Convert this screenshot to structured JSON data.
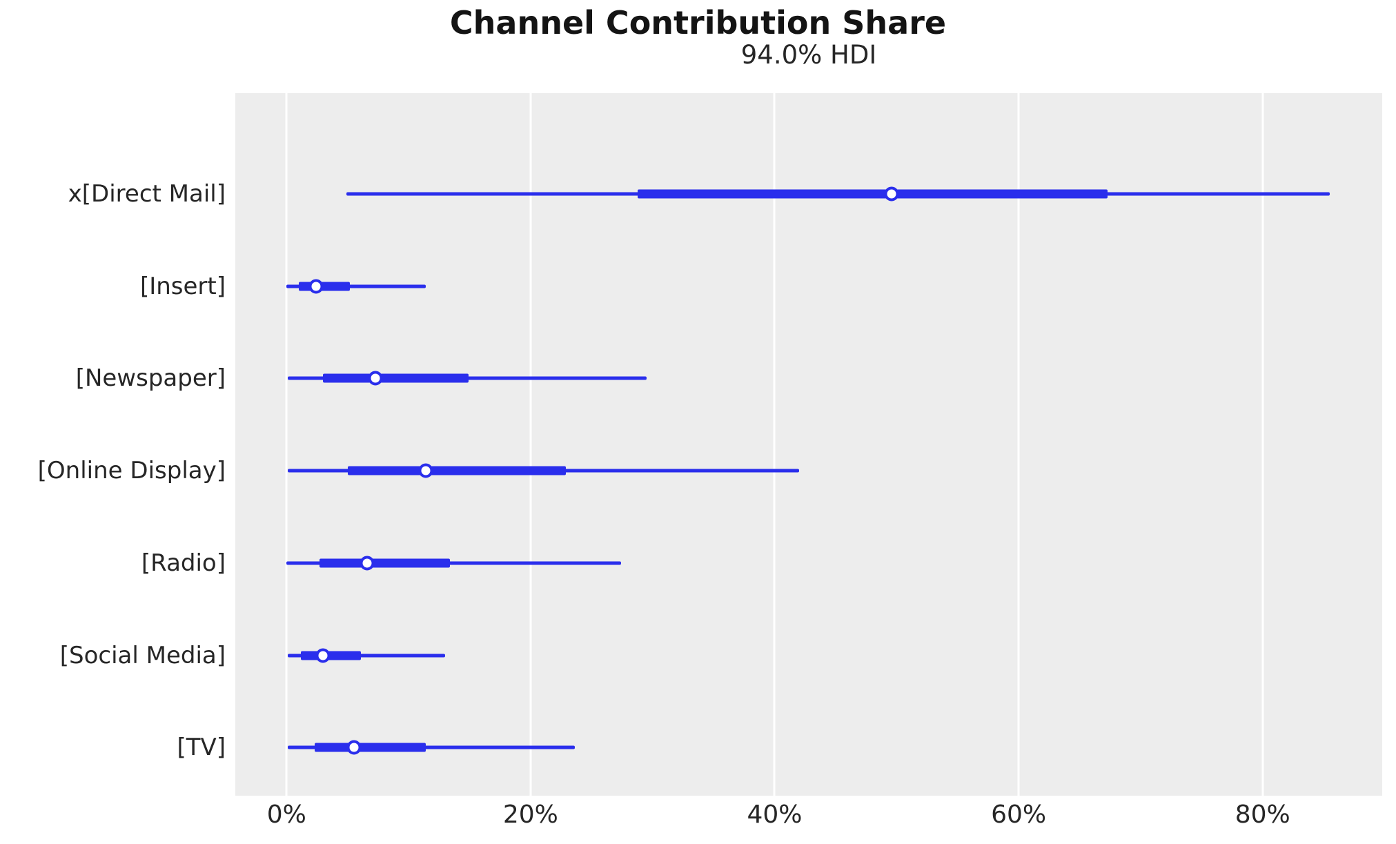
{
  "title": "Channel Contribution Share",
  "subtitle": "94.0% HDI",
  "chart_data": {
    "type": "forest",
    "title": "Channel Contribution Share",
    "subtitle": "94.0% HDI",
    "hdi_probability": "94.0%",
    "categories": [
      "x[Direct Mail]",
      "[Insert]",
      "[Newspaper]",
      "[Online Display]",
      "[Radio]",
      "[Social Media]",
      "[TV]"
    ],
    "series": [
      {
        "name": "x[Direct Mail]",
        "hdi_low": 4.9,
        "hdi_high": 85.5,
        "quartile_low": 28.8,
        "quartile_high": 67.3,
        "median": 49.6
      },
      {
        "name": "[Insert]",
        "hdi_low": 0.0,
        "hdi_high": 11.4,
        "quartile_low": 1.0,
        "quartile_high": 5.2,
        "median": 2.4
      },
      {
        "name": "[Newspaper]",
        "hdi_low": 0.1,
        "hdi_high": 29.5,
        "quartile_low": 3.0,
        "quartile_high": 14.9,
        "median": 7.3
      },
      {
        "name": "[Online Display]",
        "hdi_low": 0.1,
        "hdi_high": 42.0,
        "quartile_low": 5.0,
        "quartile_high": 22.9,
        "median": 11.4
      },
      {
        "name": "[Radio]",
        "hdi_low": 0.0,
        "hdi_high": 27.4,
        "quartile_low": 2.7,
        "quartile_high": 13.4,
        "median": 6.6
      },
      {
        "name": "[Social Media]",
        "hdi_low": 0.1,
        "hdi_high": 13.0,
        "quartile_low": 1.2,
        "quartile_high": 6.1,
        "median": 3.0
      },
      {
        "name": "[TV]",
        "hdi_low": 0.1,
        "hdi_high": 23.6,
        "quartile_low": 2.3,
        "quartile_high": 11.4,
        "median": 5.5
      }
    ],
    "xlabel": "",
    "ylabel": "",
    "x_ticks": [
      "0%",
      "20%",
      "40%",
      "60%",
      "80%"
    ],
    "x_tick_values": [
      0,
      20,
      40,
      60,
      80
    ],
    "xlim": [
      -4.2,
      89.8
    ],
    "grid": "vertical-white-on-gray",
    "legend": "none",
    "colors": {
      "interval": "#2a2eec",
      "marker_face": "#ffffff",
      "plot_bg": "#ededed",
      "grid": "#ffffff",
      "text": "#262626",
      "title": "#141414"
    }
  }
}
